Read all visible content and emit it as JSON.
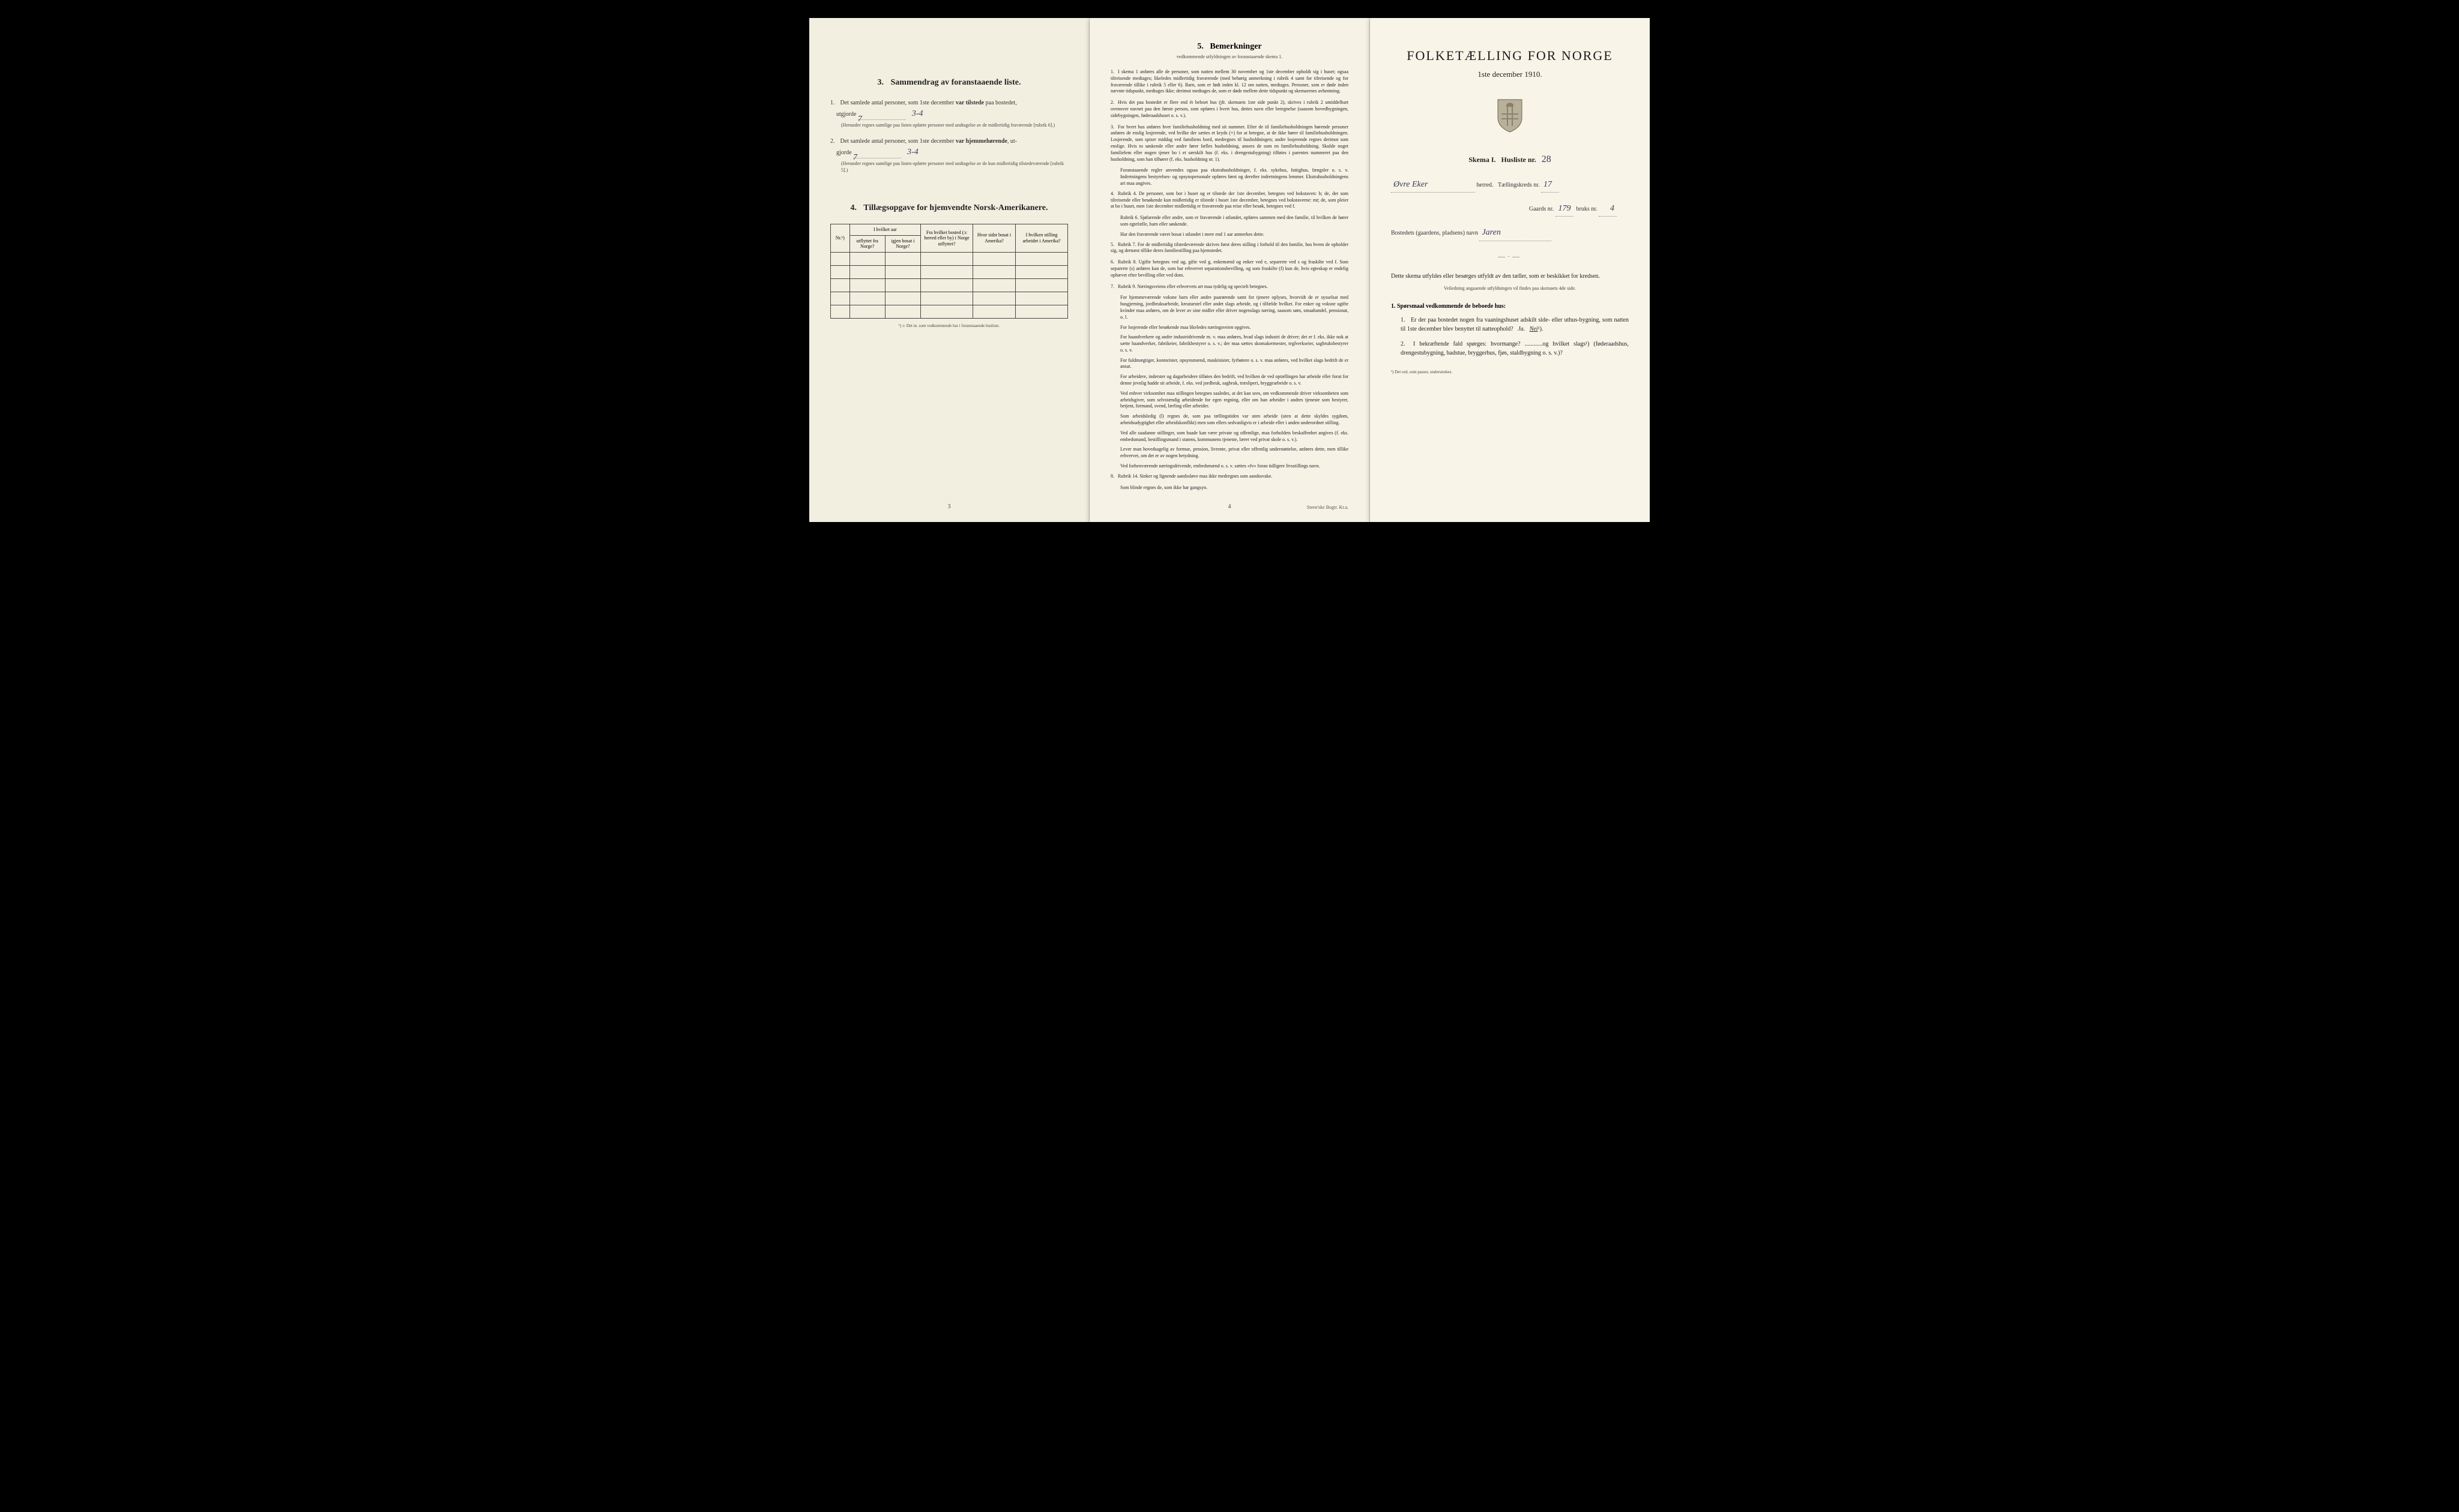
{
  "page1": {
    "section3": {
      "num": "3.",
      "title": "Sammendrag av foranstaaende liste.",
      "item1": {
        "num": "1.",
        "text_a": "Det samlede antal personer, som 1ste december",
        "text_b": "var tilstede",
        "text_c": "paa bostedet,",
        "text_d": "utgjorde",
        "handwritten_1": "7",
        "handwritten_2": "3-4",
        "note": "(Herunder regnes samtlige paa listen opførte personer med undtagelse av de midlertidig fraværende [rubrik 6].)"
      },
      "item2": {
        "num": "2.",
        "text_a": "Det samlede antal personer, som 1ste december",
        "text_b": "var hjemmehørende",
        "text_c": ", ut-",
        "text_d": "gjorde",
        "handwritten_1": "7",
        "handwritten_2": "3-4",
        "note": "(Herunder regnes samtlige paa listen opførte personer med undtagelse av de kun midlertidig tilstedeværende [rubrik 5].)"
      }
    },
    "section4": {
      "num": "4.",
      "title": "Tillægsopgave for hjemvendte Norsk-Amerikanere.",
      "headers": {
        "nr": "Nr.¹)",
        "col1_top": "I hvilket aar",
        "col1a": "utflyttet fra Norge?",
        "col1b": "igjen bosat i Norge?",
        "col2": "Fra hvilket bosted (ɔ: herred eller by) i Norge utflyttet?",
        "col3": "Hvor sidst bosat i Amerika?",
        "col4": "I hvilken stilling arbeidet i Amerika?"
      },
      "footnote": "¹) ɔ: Det nr. som vedkommende har i foranstaaende husliste."
    },
    "page_num": "3"
  },
  "page2": {
    "heading_num": "5.",
    "heading": "Bemerkninger",
    "subheading": "vedkommende utfyldningen av foranstaaende skema 1.",
    "items": [
      {
        "num": "1.",
        "text": "I skema 1 anføres alle de personer, som natten mellem 30 november og 1ste december opholdt sig i huset; ogsaa tilreisende medtages; likeledes midlertidig fraværende (med behørig anmerkning i rubrik 4 samt for tilreisende og for fraværende tillike i rubrik 5 eller 6). Barn, som er født inden kl. 12 om natten, medtages. Personer, som er døde inden nævnte tidspunkt, medtages ikke; derimot medtages de, som er døde mellem dette tidspunkt og skemaernes avhentning."
      },
      {
        "num": "2.",
        "text": "Hvis det paa bostedet er flere end ét beboet hus (jfr. skemaets 1ste side punkt 2), skrives i rubrik 2 umiddelbart ovenover navnet paa den første person, som opføres i hvert hus, dettes navn eller betegnelse (saasom hovedbygningen, sidebygningen, føderaadshuset o. s. v.)."
      },
      {
        "num": "3.",
        "text": "For hvert hus anføres hver familiehusholdning med sit nummer. Efter de til familiehusholdningen hørende personer anføres de enslig losjerende, ved hvilke der sættes et kryds (×) for at betegne, at de ikke hører til familiehusholdningen. Losjerende, som spiser middag ved familiens bord, medregnes til husholdningen; andre losjerende regnes derimot som enslige. Hvis to søskende eller andre fører fælles husholdning, ansees de som en familiehusholdning. Skulde noget familielem eller nogen tjener bo i et særskilt hus (f. eks. i drengestubygning) tilføies i parentes nummeret paa den husholdning, som han tilhører (f. eks. husholdning nr. 1).",
        "para2": "Foranstaaende regler anvendes ogsaa paa ekstrahusholdninger, f. eks. sykehus, fattighus, fængsler o. s. v. Indretningens bestyrelses- og opsynspersonale opføres først og derefter indretningens lemmer. Ekstrahusholdningens art maa angives."
      },
      {
        "num": "4.",
        "text": "Rubrik 4. De personer, som bor i huset og er tilstede der 1ste december, betegnes ved bokstaven: b; de, der som tilreisende eller besøkende kun midlertidig er tilstede i huset 1ste december, betegnes ved bokstaverne: mt; de, som pleier at bo i huset, men 1ste december midlertidig er fraværende paa reise eller besøk, betegnes ved f.",
        "para2": "Rubrik 6. Sjøfarende eller andre, som er fraværende i utlandet, opføres sammen med den familie, til hvilken de hører som egtefælle, barn eller søskende.",
        "para3": "Har den fraværende været bosat i utlandet i mere end 1 aar anmerkes dette."
      },
      {
        "num": "5.",
        "text": "Rubrik 7. For de midlertidig tilstedeværende skrives først deres stilling i forhold til den familie, hos hvem de opholder sig, og dernæst tillike deres familiestilling paa hjemstedet."
      },
      {
        "num": "6.",
        "text": "Rubrik 8. Ugifte betegnes ved ug, gifte ved g, enkemænd og enker ved e, separerte ved s og fraskilte ved f. Som separerte (s) anføres kun de, som har erhvervet separationsbevilling, og som fraskilte (f) kun de, hvis egteskap er endelig ophævet efter bevilling eller ved dom."
      },
      {
        "num": "7.",
        "text": "Rubrik 9. Næringsveiens eller erhvervets art maa tydelig og specielt betegnes.",
        "para2": "For hjemmeværende voksne barn eller andre paarørende samt for tjenere oplyses, hvorvidt de er sysselsat med husgjerning, jordbruksarbeide, kreaturstel eller andet slags arbeide, og i tilfælde hvilket. For enker og voksne ugifte kvinder maa anføres, om de lever av sine midler eller driver nogenslags næring, saasom søm, smaahandel, pensionat, o. l.",
        "para3": "For losjerende eller besøkende maa likeledes næringsveien opgives.",
        "para4": "For haandverkere og andre industridrivende m. v. maa anføres, hvad slags industri de driver; det er f. eks. ikke nok at sætte haandverker, fabrikeier, fabrikbestyrer o. s. v.; der maa sættes skomakermester, teglverkseier, sagbruksbestyrer o. s. v.",
        "para5": "For fuldmægtiger, kontorister, opsynsmænd, maskinister, fyrbøtere o. s. v. maa anføres, ved hvilket slags bedrift de er ansat.",
        "para6": "For arbeidere, inderster og dagarbeidere tilføies den bedrift, ved hvilken de ved optællingen har arbeide eller forut for denne jevnlig hadde sit arbeide, f. eks. ved jordbruk, sagbruk, træsliperi, bryggearbeide o. s. v.",
        "para7": "Ved enhver virksomhet maa stillingen betegnes saaledes, at det kan sees, om vedkommende driver virksomheten som arbeidsgiver, som selvstændig arbeidende for egen regning, eller om han arbeider i andres tjeneste som bestyrer, betjent, formand, svend, lærling eller arbeider.",
        "para8": "Som arbeidsledig (l) regnes de, som paa tællingstiden var uten arbeide (uten at dette skyldes sygdom, arbeidsudygtighet eller arbeidskonflikt) men som ellers sedvanligvis er i arbeide eller i anden underordnet stilling.",
        "para9": "Ved alle saadanne stillinger, som baade kan være private og offentlige, maa forholdets beskaffenhet angives (f. eks. embedsmand, bestillingsmand i statens, kommunens tjeneste, lærer ved privat skole o. s. v.).",
        "para10": "Lever man hovedsagelig av formue, pension, livrente, privat eller offentlig understøttelse, anføres dette, men tillike erhvervet, om det er av nogen betydning.",
        "para11": "Ved forhenværende næringsdrivende, embedsmænd o. s. v. sættes «fv» foran tidligere livsstillings navn."
      },
      {
        "num": "8.",
        "text": "Rubrik 14. Sinker og lignende aandssløve maa ikke medregnes som aandssvake.",
        "para2": "Som blinde regnes de, som ikke har gangsyn."
      }
    ],
    "page_num": "4",
    "footer": "Steen'ske Bogtr. Kr.a."
  },
  "page3": {
    "main_title": "FOLKETÆLLING FOR NORGE",
    "sub_title": "1ste december 1910.",
    "schema": {
      "label_a": "Skema I.",
      "label_b": "Husliste nr.",
      "value": "28"
    },
    "line1": {
      "hw": "Øvre Eker",
      "label_a": "herred.",
      "label_b": "Tællingskreds nr.",
      "value": "17"
    },
    "line2": {
      "label_a": "Gaards nr.",
      "value_a": "179",
      "label_b": "bruks nr.",
      "value_b": "4"
    },
    "line3": {
      "label": "Bostedets (gaardens, pladsens) navn",
      "hw": "Jaren"
    },
    "instruction": "Dette skema utfyldes eller besørges utfyldt av den tæller, som er beskikket for kredsen.",
    "instruction_small": "Veiledning angaaende utfyldningen vil findes paa skemaets 4de side.",
    "q_heading_num": "1.",
    "q_heading": "Spørsmaal vedkommende de beboede hus:",
    "q1": {
      "num": "1.",
      "text_a": "Er der paa bostedet nogen fra vaaningshuset adskilt side- eller uthus-bygning, som natten til 1ste december blev benyttet til natteophold?",
      "ja": "Ja.",
      "nei": "Nei",
      "sup": "¹)."
    },
    "q2": {
      "num": "2.",
      "text": "I bekræftende fald spørges: hvormange? ............og hvilket slags¹) (føderaadshus, drengestubygning, badstue, bryggerhus, fjøs, staldbygning o. s. v.)?"
    },
    "footnote": "¹) Det ord, som passer, understrekes."
  }
}
